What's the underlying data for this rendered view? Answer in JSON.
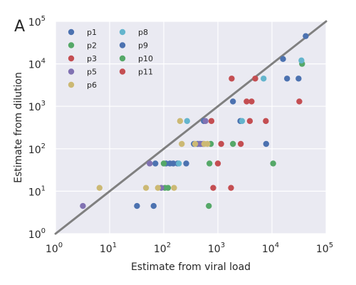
{
  "chart_data": {
    "type": "scatter",
    "panel_label": "A",
    "xlabel": "Estimate from viral load",
    "ylabel": "Estimate from dilution",
    "x_scale": "log",
    "y_scale": "log",
    "xlim": [
      1,
      100000
    ],
    "ylim": [
      1,
      100000
    ],
    "grid": true,
    "legend": "top-left",
    "x_ticks": [
      {
        "value": 1,
        "base": "10",
        "exp": "0"
      },
      {
        "value": 10,
        "base": "10",
        "exp": "1"
      },
      {
        "value": 100,
        "base": "10",
        "exp": "2"
      },
      {
        "value": 1000,
        "base": "10",
        "exp": "3"
      },
      {
        "value": 10000,
        "base": "10",
        "exp": "4"
      },
      {
        "value": 100000,
        "base": "10",
        "exp": "5"
      }
    ],
    "y_ticks": [
      {
        "value": 1,
        "base": "10",
        "exp": "0"
      },
      {
        "value": 10,
        "base": "10",
        "exp": "1"
      },
      {
        "value": 100,
        "base": "10",
        "exp": "2"
      },
      {
        "value": 1000,
        "base": "10",
        "exp": "3"
      },
      {
        "value": 10000,
        "base": "10",
        "exp": "4"
      },
      {
        "value": 100000,
        "base": "10",
        "exp": "5"
      }
    ],
    "reference_line": {
      "x": [
        1,
        100000
      ],
      "y": [
        1,
        100000
      ],
      "color": "#808080"
    },
    "series": [
      {
        "name": "p1",
        "color": "#4c72b0",
        "points": [
          [
            32,
            4.5
          ],
          [
            65,
            4.5
          ],
          [
            70,
            45
          ],
          [
            110,
            45
          ],
          [
            130,
            45
          ],
          [
            150,
            45
          ],
          [
            180,
            45
          ],
          [
            260,
            45
          ],
          [
            360,
            130
          ],
          [
            420,
            130
          ],
          [
            480,
            130
          ],
          [
            550,
            450
          ],
          [
            2600,
            450
          ],
          [
            1900,
            1300
          ],
          [
            7800,
            130
          ],
          [
            19000,
            4500
          ],
          [
            31000,
            4500
          ],
          [
            16000,
            13000
          ],
          [
            42000,
            45000
          ]
        ]
      },
      {
        "name": "p2",
        "color": "#55a868",
        "points": [
          [
            100,
            45
          ],
          [
            105,
            12
          ],
          [
            120,
            12
          ],
          [
            680,
            4.5
          ],
          [
            700,
            45
          ],
          [
            740,
            130
          ],
          [
            1900,
            130
          ],
          [
            10500,
            45
          ],
          [
            36000,
            10000
          ]
        ]
      },
      {
        "name": "p3",
        "color": "#c44e52",
        "points": [
          [
            760,
            450
          ],
          [
            820,
            12
          ],
          [
            1000,
            45
          ],
          [
            1150,
            130
          ],
          [
            1750,
            12
          ],
          [
            1800,
            4500
          ],
          [
            2650,
            130
          ],
          [
            3400,
            1300
          ],
          [
            3900,
            450
          ],
          [
            4200,
            1300
          ],
          [
            4900,
            4500
          ],
          [
            7700,
            450
          ],
          [
            32000,
            1300
          ]
        ]
      },
      {
        "name": "p5",
        "color": "#8172b2",
        "points": [
          [
            3.2,
            4.5
          ],
          [
            55,
            45
          ],
          [
            90,
            12
          ],
          [
            450,
            130
          ],
          [
            530,
            130
          ],
          [
            590,
            450
          ]
        ]
      },
      {
        "name": "p6",
        "color": "#ccb974",
        "points": [
          [
            6.5,
            12
          ],
          [
            47,
            12
          ],
          [
            78,
            12
          ],
          [
            155,
            12
          ],
          [
            200,
            450
          ],
          [
            215,
            130
          ],
          [
            380,
            130
          ],
          [
            560,
            130
          ],
          [
            640,
            130
          ]
        ]
      },
      {
        "name": "p8",
        "color": "#64b5cd",
        "points": [
          [
            190,
            45
          ],
          [
            270,
            450
          ],
          [
            2800,
            450
          ],
          [
            7000,
            4500
          ],
          [
            35000,
            12000
          ]
        ]
      },
      {
        "name": "p9",
        "color": "#4c72b0",
        "points": []
      },
      {
        "name": "p10",
        "color": "#55a868",
        "points": []
      },
      {
        "name": "p11",
        "color": "#c44e52",
        "points": []
      }
    ]
  }
}
